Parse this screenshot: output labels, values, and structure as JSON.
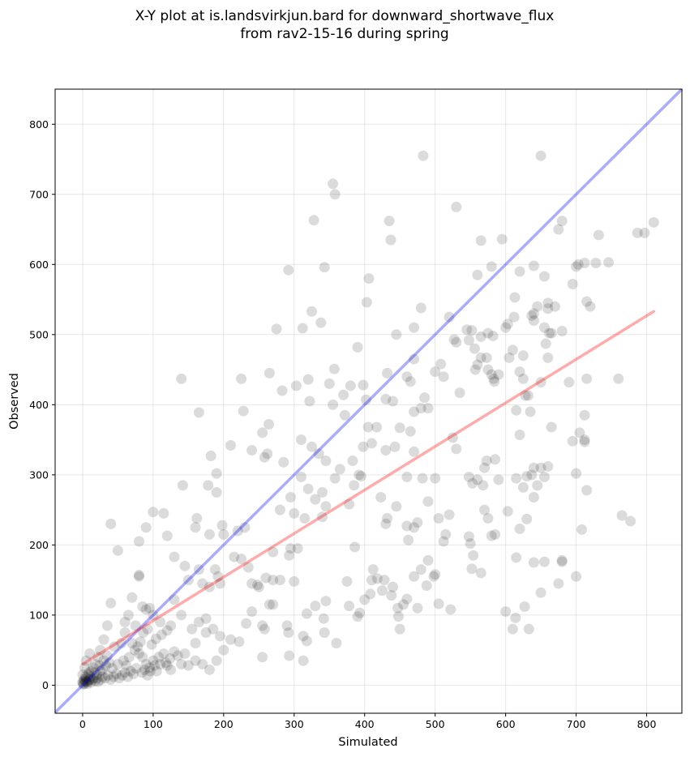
{
  "chart_data": {
    "type": "scatter",
    "title_lines": [
      "X-Y plot at is.landsvirkjun.bard for downward_shortwave_flux",
      "from rav2-15-16 during spring"
    ],
    "xlabel": "Simulated",
    "ylabel": "Observed",
    "xlim": [
      -39,
      850
    ],
    "ylim": [
      -40,
      850
    ],
    "xticks": [
      0,
      100,
      200,
      300,
      400,
      500,
      600,
      700,
      800
    ],
    "yticks": [
      0,
      100,
      200,
      300,
      400,
      500,
      600,
      700,
      800
    ],
    "grid": true,
    "point_color": "#000000",
    "identity_line": {
      "color": "#0000ff",
      "from": [
        -39,
        -39
      ],
      "to": [
        850,
        850
      ]
    },
    "regression_line": {
      "color": "#ff0000",
      "from": [
        0,
        30
      ],
      "to": [
        810,
        533
      ]
    },
    "points": [
      [
        483,
        755
      ],
      [
        650,
        755
      ],
      [
        355,
        715
      ],
      [
        358,
        700
      ],
      [
        328,
        663
      ],
      [
        435,
        662
      ],
      [
        437,
        635
      ],
      [
        530,
        682
      ],
      [
        292,
        592
      ],
      [
        343,
        596
      ],
      [
        406,
        580
      ],
      [
        565,
        634
      ],
      [
        595,
        636
      ],
      [
        580,
        597
      ],
      [
        620,
        590
      ],
      [
        680,
        662
      ],
      [
        675,
        650
      ],
      [
        732,
        642
      ],
      [
        787,
        645
      ],
      [
        797,
        645
      ],
      [
        810,
        660
      ],
      [
        700,
        597
      ],
      [
        703,
        600
      ],
      [
        712,
        602
      ],
      [
        728,
        602
      ],
      [
        746,
        603
      ],
      [
        695,
        572
      ],
      [
        715,
        547
      ],
      [
        720,
        540
      ],
      [
        660,
        545
      ],
      [
        660,
        537
      ],
      [
        640,
        530
      ],
      [
        645,
        540
      ],
      [
        655,
        583
      ],
      [
        640,
        598
      ],
      [
        560,
        585
      ],
      [
        613,
        553
      ],
      [
        603,
        515
      ],
      [
        600,
        510
      ],
      [
        610,
        478
      ],
      [
        605,
        467
      ],
      [
        625,
        470
      ],
      [
        612,
        525
      ],
      [
        520,
        525
      ],
      [
        527,
        493
      ],
      [
        530,
        489
      ],
      [
        545,
        507
      ],
      [
        548,
        492
      ],
      [
        552,
        506
      ],
      [
        556,
        480
      ],
      [
        565,
        497
      ],
      [
        575,
        502
      ],
      [
        582,
        498
      ],
      [
        565,
        467
      ],
      [
        573,
        467
      ],
      [
        560,
        457
      ],
      [
        557,
        450
      ],
      [
        575,
        450
      ],
      [
        584,
        433
      ],
      [
        580,
        443
      ],
      [
        500,
        447
      ],
      [
        508,
        458
      ],
      [
        512,
        440
      ],
      [
        470,
        510
      ],
      [
        480,
        538
      ],
      [
        403,
        546
      ],
      [
        325,
        533
      ],
      [
        338,
        517
      ],
      [
        275,
        508
      ],
      [
        312,
        509
      ],
      [
        390,
        482
      ],
      [
        445,
        500
      ],
      [
        440,
        405
      ],
      [
        460,
        440
      ],
      [
        470,
        465
      ],
      [
        465,
        433
      ],
      [
        432,
        445
      ],
      [
        430,
        408
      ],
      [
        402,
        407
      ],
      [
        380,
        427
      ],
      [
        398,
        428
      ],
      [
        370,
        414
      ],
      [
        357,
        451
      ],
      [
        350,
        430
      ],
      [
        355,
        400
      ],
      [
        372,
        385
      ],
      [
        320,
        436
      ],
      [
        322,
        405
      ],
      [
        303,
        427
      ],
      [
        283,
        420
      ],
      [
        225,
        437
      ],
      [
        140,
        437
      ],
      [
        228,
        391
      ],
      [
        165,
        389
      ],
      [
        265,
        445
      ],
      [
        264,
        372
      ],
      [
        255,
        360
      ],
      [
        262,
        330
      ],
      [
        258,
        325
      ],
      [
        285,
        318
      ],
      [
        310,
        350
      ],
      [
        325,
        340
      ],
      [
        335,
        330
      ],
      [
        345,
        320
      ],
      [
        365,
        308
      ],
      [
        358,
        295
      ],
      [
        383,
        320
      ],
      [
        398,
        340
      ],
      [
        392,
        300
      ],
      [
        405,
        368
      ],
      [
        417,
        368
      ],
      [
        410,
        345
      ],
      [
        430,
        335
      ],
      [
        443,
        340
      ],
      [
        450,
        367
      ],
      [
        465,
        362
      ],
      [
        480,
        395
      ],
      [
        485,
        410
      ],
      [
        490,
        395
      ],
      [
        470,
        390
      ],
      [
        482,
        295
      ],
      [
        490,
        262
      ],
      [
        500,
        295
      ],
      [
        505,
        238
      ],
      [
        512,
        205
      ],
      [
        515,
        215
      ],
      [
        520,
        243
      ],
      [
        525,
        353
      ],
      [
        530,
        337
      ],
      [
        535,
        417
      ],
      [
        548,
        297
      ],
      [
        553,
        288
      ],
      [
        560,
        293
      ],
      [
        568,
        285
      ],
      [
        570,
        310
      ],
      [
        573,
        320
      ],
      [
        548,
        212
      ],
      [
        550,
        202
      ],
      [
        554,
        185
      ],
      [
        552,
        166
      ],
      [
        565,
        160
      ],
      [
        570,
        250
      ],
      [
        575,
        238
      ],
      [
        580,
        213
      ],
      [
        585,
        215
      ],
      [
        500,
        158
      ],
      [
        498,
        155
      ],
      [
        480,
        165
      ],
      [
        490,
        178
      ],
      [
        488,
        142
      ],
      [
        505,
        116
      ],
      [
        522,
        108
      ],
      [
        455,
        115
      ],
      [
        460,
        123
      ],
      [
        475,
        110
      ],
      [
        440,
        140
      ],
      [
        438,
        128
      ],
      [
        425,
        135
      ],
      [
        428,
        150
      ],
      [
        412,
        165
      ],
      [
        410,
        150
      ],
      [
        418,
        152
      ],
      [
        408,
        130
      ],
      [
        400,
        122
      ],
      [
        390,
        98
      ],
      [
        393,
        103
      ],
      [
        375,
        148
      ],
      [
        378,
        113
      ],
      [
        360,
        60
      ],
      [
        343,
        75
      ],
      [
        342,
        95
      ],
      [
        345,
        120
      ],
      [
        330,
        113
      ],
      [
        318,
        102
      ],
      [
        313,
        70
      ],
      [
        318,
        63
      ],
      [
        313,
        35
      ],
      [
        293,
        42
      ],
      [
        292,
        75
      ],
      [
        290,
        85
      ],
      [
        255,
        40
      ],
      [
        265,
        115
      ],
      [
        255,
        85
      ],
      [
        250,
        140
      ],
      [
        248,
        143
      ],
      [
        260,
        153
      ],
      [
        270,
        190
      ],
      [
        240,
        145
      ],
      [
        235,
        168
      ],
      [
        225,
        180
      ],
      [
        215,
        183
      ],
      [
        220,
        220
      ],
      [
        230,
        225
      ],
      [
        240,
        335
      ],
      [
        210,
        342
      ],
      [
        198,
        228
      ],
      [
        200,
        215
      ],
      [
        188,
        165
      ],
      [
        195,
        145
      ],
      [
        192,
        155
      ],
      [
        180,
        215
      ],
      [
        178,
        285
      ],
      [
        190,
        275
      ],
      [
        190,
        302
      ],
      [
        182,
        327
      ],
      [
        160,
        225
      ],
      [
        162,
        238
      ],
      [
        142,
        285
      ],
      [
        115,
        245
      ],
      [
        100,
        247
      ],
      [
        120,
        213
      ],
      [
        90,
        225
      ],
      [
        80,
        205
      ],
      [
        80,
        155
      ],
      [
        80,
        157
      ],
      [
        40,
        230
      ],
      [
        50,
        192
      ],
      [
        130,
        183
      ],
      [
        145,
        170
      ],
      [
        150,
        150
      ],
      [
        165,
        165
      ],
      [
        170,
        145
      ],
      [
        180,
        140
      ],
      [
        140,
        100
      ],
      [
        130,
        122
      ],
      [
        125,
        85
      ],
      [
        120,
        78
      ],
      [
        110,
        90
      ],
      [
        100,
        100
      ],
      [
        95,
        110
      ],
      [
        90,
        108
      ],
      [
        85,
        112
      ],
      [
        70,
        125
      ],
      [
        75,
        85
      ],
      [
        60,
        75
      ],
      [
        55,
        60
      ],
      [
        45,
        55
      ],
      [
        35,
        42
      ],
      [
        30,
        35
      ],
      [
        25,
        20
      ],
      [
        20,
        15
      ],
      [
        15,
        10
      ],
      [
        10,
        8
      ],
      [
        5,
        5
      ],
      [
        0,
        3
      ],
      [
        0,
        5
      ],
      [
        2,
        2
      ],
      [
        5,
        10
      ],
      [
        8,
        15
      ],
      [
        12,
        20
      ],
      [
        3,
        25
      ],
      [
        5,
        35
      ],
      [
        0,
        15
      ],
      [
        18,
        30
      ],
      [
        22,
        40
      ],
      [
        25,
        50
      ],
      [
        10,
        45
      ],
      [
        30,
        65
      ],
      [
        35,
        85
      ],
      [
        40,
        117
      ],
      [
        65,
        100
      ],
      [
        60,
        90
      ],
      [
        70,
        60
      ],
      [
        80,
        45
      ],
      [
        85,
        40
      ],
      [
        90,
        30
      ],
      [
        95,
        25
      ],
      [
        100,
        35
      ],
      [
        105,
        20
      ],
      [
        110,
        30
      ],
      [
        120,
        28
      ],
      [
        125,
        22
      ],
      [
        130,
        48
      ],
      [
        140,
        30
      ],
      [
        150,
        28
      ],
      [
        160,
        35
      ],
      [
        170,
        30
      ],
      [
        180,
        22
      ],
      [
        190,
        35
      ],
      [
        200,
        50
      ],
      [
        195,
        70
      ],
      [
        175,
        75
      ],
      [
        160,
        60
      ],
      [
        155,
        80
      ],
      [
        165,
        90
      ],
      [
        175,
        95
      ],
      [
        185,
        80
      ],
      [
        210,
        65
      ],
      [
        222,
        62
      ],
      [
        232,
        88
      ],
      [
        240,
        105
      ],
      [
        258,
        80
      ],
      [
        270,
        115
      ],
      [
        280,
        250
      ],
      [
        295,
        268
      ],
      [
        300,
        245
      ],
      [
        310,
        297
      ],
      [
        320,
        280
      ],
      [
        330,
        265
      ],
      [
        340,
        275
      ],
      [
        345,
        255
      ],
      [
        340,
        240
      ],
      [
        315,
        238
      ],
      [
        300,
        148
      ],
      [
        305,
        195
      ],
      [
        293,
        185
      ],
      [
        295,
        195
      ],
      [
        280,
        150
      ],
      [
        270,
        150
      ],
      [
        445,
        255
      ],
      [
        460,
        297
      ],
      [
        475,
        232
      ],
      [
        470,
        225
      ],
      [
        460,
        227
      ],
      [
        462,
        207
      ],
      [
        470,
        155
      ],
      [
        450,
        80
      ],
      [
        448,
        98
      ],
      [
        447,
        110
      ],
      [
        430,
        230
      ],
      [
        432,
        238
      ],
      [
        423,
        268
      ],
      [
        470,
        333
      ],
      [
        385,
        285
      ],
      [
        378,
        258
      ],
      [
        386,
        197
      ],
      [
        395,
        298
      ],
      [
        600,
        105
      ],
      [
        610,
        80
      ],
      [
        614,
        96
      ],
      [
        627,
        112
      ],
      [
        633,
        80
      ],
      [
        615,
        182
      ],
      [
        640,
        175
      ],
      [
        650,
        132
      ],
      [
        655,
        176
      ],
      [
        675,
        145
      ],
      [
        680,
        178
      ],
      [
        680,
        176
      ],
      [
        700,
        155
      ],
      [
        708,
        222
      ],
      [
        715,
        278
      ],
      [
        700,
        302
      ],
      [
        712,
        350
      ],
      [
        705,
        360
      ],
      [
        695,
        348
      ],
      [
        690,
        432
      ],
      [
        715,
        437
      ],
      [
        712,
        385
      ],
      [
        712,
        347
      ],
      [
        665,
        368
      ],
      [
        660,
        467
      ],
      [
        680,
        505
      ],
      [
        665,
        502
      ],
      [
        657,
        487
      ],
      [
        650,
        432
      ],
      [
        625,
        437
      ],
      [
        628,
        413
      ],
      [
        632,
        413
      ],
      [
        615,
        392
      ],
      [
        620,
        357
      ],
      [
        635,
        390
      ],
      [
        640,
        310
      ],
      [
        637,
        300
      ],
      [
        640,
        268
      ],
      [
        645,
        285
      ],
      [
        650,
        310
      ],
      [
        655,
        297
      ],
      [
        630,
        298
      ],
      [
        625,
        282
      ],
      [
        630,
        237
      ],
      [
        615,
        295
      ],
      [
        620,
        223
      ],
      [
        660,
        312
      ],
      [
        760,
        437
      ],
      [
        765,
        242
      ],
      [
        777,
        234
      ],
      [
        585,
        322
      ],
      [
        590,
        293
      ],
      [
        603,
        248
      ],
      [
        583,
        437
      ],
      [
        590,
        443
      ],
      [
        620,
        447
      ],
      [
        637,
        527
      ],
      [
        640,
        520
      ],
      [
        655,
        510
      ],
      [
        662,
        502
      ],
      [
        670,
        540
      ],
      [
        2,
        8
      ],
      [
        4,
        12
      ],
      [
        6,
        4
      ],
      [
        8,
        6
      ],
      [
        12,
        4
      ],
      [
        14,
        8
      ],
      [
        18,
        6
      ],
      [
        20,
        10
      ],
      [
        22,
        5
      ],
      [
        26,
        8
      ],
      [
        28,
        12
      ],
      [
        32,
        10
      ],
      [
        36,
        14
      ],
      [
        40,
        8
      ],
      [
        44,
        12
      ],
      [
        48,
        16
      ],
      [
        52,
        10
      ],
      [
        56,
        14
      ],
      [
        60,
        18
      ],
      [
        64,
        12
      ],
      [
        68,
        20
      ],
      [
        72,
        16
      ],
      [
        76,
        24
      ],
      [
        84,
        18
      ],
      [
        88,
        22
      ],
      [
        92,
        14
      ],
      [
        96,
        20
      ],
      [
        102,
        28
      ],
      [
        108,
        40
      ],
      [
        115,
        45
      ],
      [
        118,
        32
      ],
      [
        124,
        38
      ],
      [
        135,
        42
      ],
      [
        145,
        45
      ],
      [
        1,
        1
      ],
      [
        3,
        6
      ],
      [
        7,
        2
      ],
      [
        9,
        18
      ],
      [
        11,
        12
      ],
      [
        15,
        25
      ],
      [
        17,
        18
      ],
      [
        24,
        28
      ],
      [
        28,
        22
      ],
      [
        33,
        28
      ],
      [
        38,
        32
      ],
      [
        42,
        24
      ],
      [
        50,
        30
      ],
      [
        58,
        35
      ],
      [
        62,
        28
      ],
      [
        66,
        40
      ],
      [
        74,
        50
      ],
      [
        78,
        55
      ],
      [
        82,
        62
      ],
      [
        86,
        75
      ],
      [
        92,
        80
      ],
      [
        98,
        58
      ],
      [
        104,
        66
      ],
      [
        112,
        72
      ]
    ]
  }
}
